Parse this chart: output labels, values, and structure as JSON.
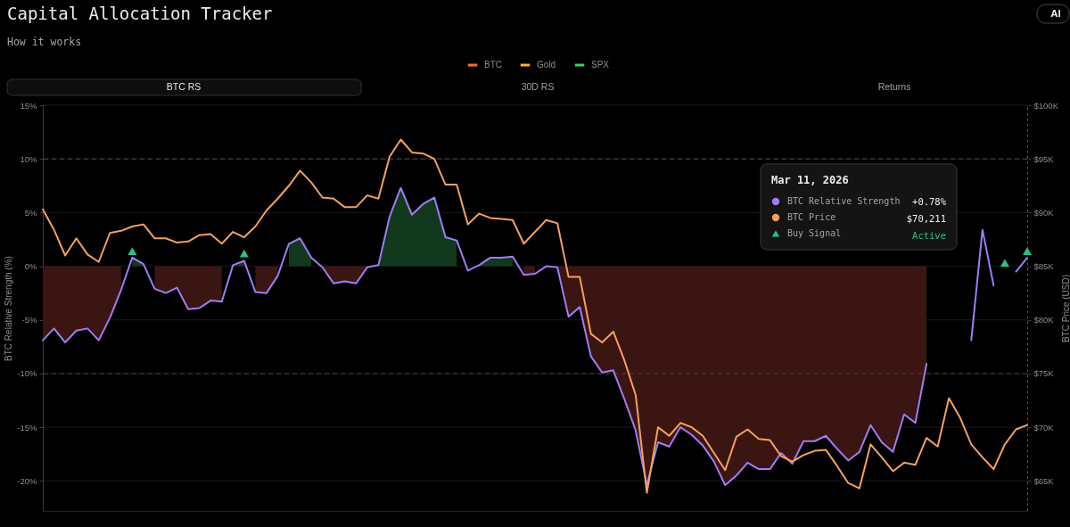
{
  "chart_data": {
    "type": "line",
    "title": "Capital Allocation Tracker",
    "annotations": [
      "How it works",
      "BTC RS",
      "30D RS",
      "Returns",
      "AI",
      "+0.78%",
      "$70,211",
      "Active"
    ],
    "ylabel": "BTC Relative Strength (%)",
    "y2label": "BTC Price (USD)",
    "legend_title": "Mar 11, 2026",
    "categories": [
      null,
      null,
      null,
      null,
      null,
      null,
      null,
      null,
      null,
      null,
      null,
      null,
      null,
      null,
      null,
      null,
      null,
      null,
      null,
      null,
      null,
      null,
      null,
      null,
      null,
      null,
      null,
      null,
      null,
      null,
      null,
      null,
      null,
      null,
      null,
      null,
      null,
      null,
      null,
      null,
      null,
      null,
      null,
      null,
      null,
      null,
      null,
      null,
      null,
      null,
      null,
      null,
      null,
      null,
      null,
      null,
      null,
      null,
      null,
      null,
      null,
      null,
      null,
      null,
      null,
      null,
      null,
      null,
      null,
      null,
      null,
      null,
      null,
      null,
      null,
      null,
      null,
      null,
      null,
      null,
      null,
      null,
      null,
      null,
      null,
      null,
      null,
      null,
      null
    ],
    "series": [
      {
        "type": "area",
        "color": "#3b1512",
        "values": [
          -6.9,
          -5.8,
          -7.1,
          -6.0,
          -5.8,
          -6.9,
          -4.8,
          -2.2,
          null,
          null,
          -2.1,
          -2.5,
          -2.0,
          -4.0,
          -3.9,
          -3.2,
          -3.3,
          null,
          null,
          -2.4,
          -2.5,
          -0.9,
          null,
          null,
          null,
          -0.1,
          -1.6,
          -1.4,
          -1.6,
          -0.1,
          null,
          null,
          null,
          null,
          null,
          null,
          null,
          null,
          null,
          null,
          null,
          null,
          null,
          -0.8,
          -0.7,
          null,
          -0.1,
          -4.7,
          -3.8,
          -8.4,
          -9.9,
          -9.7,
          -12.4,
          -15.3,
          -20.4,
          -16.4,
          -16.8,
          -15.0,
          -15.7,
          -16.7,
          -18.2,
          -20.4,
          -19.5,
          -18.3,
          -18.9,
          -18.9,
          -17.4,
          -18.4,
          -16.3,
          -16.3,
          -15.8,
          -17.0,
          -18.1,
          -17.3,
          -14.8,
          -16.4,
          -17.3,
          -13.8,
          -14.6,
          -9.1,
          null,
          null,
          null,
          null,
          null,
          null,
          null,
          null,
          null
        ]
      },
      {
        "type": "area",
        "color": "#12391e",
        "values": [
          null,
          null,
          null,
          null,
          null,
          null,
          null,
          null,
          0.8,
          0.2,
          null,
          null,
          null,
          null,
          null,
          null,
          null,
          0.1,
          0.5,
          null,
          null,
          null,
          2.1,
          2.6,
          0.8,
          null,
          null,
          null,
          null,
          null,
          0.1,
          4.6,
          7.3,
          4.8,
          5.8,
          6.4,
          2.7,
          2.4,
          null,
          0.1,
          0.8,
          0.8,
          0.9,
          null,
          null,
          null,
          null,
          null,
          null,
          null,
          null,
          null,
          null,
          null,
          null,
          null,
          null,
          null,
          null,
          null,
          null,
          null,
          null,
          null,
          null,
          null,
          null,
          null,
          null,
          null,
          null,
          null,
          null,
          null,
          null,
          null,
          null,
          null,
          null,
          null,
          null,
          null,
          null,
          null,
          null,
          null,
          null,
          null,
          null
        ]
      },
      {
        "name": "BTC Relative Strength",
        "color": "#a07cf6",
        "values": [
          -6.9,
          -5.8,
          -7.1,
          -6.0,
          -5.8,
          -6.9,
          -4.8,
          -2.2,
          0.8,
          0.2,
          -2.1,
          -2.5,
          -2.0,
          -4.0,
          -3.9,
          -3.2,
          -3.3,
          0.1,
          0.5,
          -2.4,
          -2.5,
          -0.9,
          2.1,
          2.6,
          0.8,
          -0.1,
          -1.6,
          -1.4,
          -1.6,
          -0.1,
          0.1,
          4.6,
          7.3,
          4.8,
          5.8,
          6.4,
          2.7,
          2.4,
          -0.4,
          0.1,
          0.8,
          0.8,
          0.9,
          -0.8,
          -0.7,
          0.0,
          -0.1,
          -4.7,
          -3.8,
          -8.4,
          -9.9,
          -9.7,
          -12.4,
          -15.3,
          -20.4,
          -16.4,
          -16.8,
          -15.0,
          -15.7,
          -16.7,
          -18.2,
          -20.4,
          -19.5,
          -18.3,
          -18.9,
          -18.9,
          -17.4,
          -18.4,
          -16.3,
          -16.3,
          -15.8,
          -17.0,
          -18.1,
          -17.3,
          -14.8,
          -16.4,
          -17.3,
          -13.8,
          -14.6,
          -9.1,
          null,
          null,
          null,
          -6.9,
          3.4,
          -1.8,
          null,
          -0.5,
          0.78
        ]
      },
      {
        "name": "BTC Price",
        "axis": "y2",
        "color": "#f5a15d",
        "values": [
          90300,
          88400,
          86000,
          87600,
          86100,
          85400,
          88100,
          88300,
          88700,
          88900,
          87600,
          87600,
          87200,
          87300,
          87900,
          88000,
          87100,
          88200,
          87700,
          88700,
          90200,
          91300,
          92500,
          93900,
          92800,
          91400,
          91300,
          90500,
          90500,
          91600,
          91300,
          95200,
          96800,
          95600,
          95500,
          95000,
          92600,
          92600,
          88900,
          89900,
          89500,
          89400,
          89300,
          87100,
          88200,
          89300,
          89000,
          84000,
          84000,
          78700,
          77900,
          78900,
          76200,
          73000,
          63900,
          70000,
          69200,
          70400,
          70000,
          69200,
          67600,
          66000,
          69100,
          69800,
          68900,
          68800,
          67300,
          66800,
          67400,
          67800,
          67900,
          66400,
          64800,
          64300,
          68400,
          67200,
          65900,
          66700,
          66500,
          69000,
          68200,
          72700,
          70900,
          68400,
          67200,
          66100,
          68400,
          69800,
          70211
        ]
      },
      {
        "name": "Buy Signal",
        "type": "scatter",
        "marker": "triangle",
        "color": "#2dbf8b",
        "values": [
          null,
          null,
          null,
          null,
          null,
          null,
          null,
          null,
          1.4,
          null,
          null,
          null,
          null,
          null,
          null,
          null,
          null,
          null,
          1.2,
          null,
          null,
          null,
          null,
          null,
          null,
          null,
          null,
          null,
          null,
          null,
          null,
          null,
          null,
          null,
          null,
          null,
          null,
          null,
          null,
          null,
          null,
          null,
          null,
          null,
          null,
          null,
          null,
          null,
          null,
          null,
          null,
          null,
          null,
          null,
          null,
          null,
          null,
          null,
          null,
          null,
          null,
          null,
          null,
          null,
          null,
          null,
          null,
          null,
          null,
          null,
          null,
          null,
          null,
          null,
          null,
          null,
          null,
          null,
          null,
          null,
          null,
          null,
          null,
          null,
          null,
          null,
          0.3,
          null,
          1.4
        ]
      },
      {
        "name": "BTC",
        "color": "#f2743e",
        "values": [
          null,
          null,
          null,
          null,
          null,
          null,
          null,
          null,
          null,
          null,
          null,
          null,
          null,
          null,
          null,
          null,
          null,
          null,
          null,
          null,
          null,
          null,
          null,
          null,
          null,
          null,
          null,
          null,
          null,
          null,
          null,
          null,
          null,
          null,
          null,
          null,
          null,
          null,
          null,
          null,
          null,
          null,
          null,
          null,
          null,
          null,
          null,
          null,
          null,
          null,
          null,
          null,
          null,
          null,
          null,
          null,
          null,
          null,
          null,
          null,
          null,
          null,
          null,
          null,
          null,
          null,
          null,
          null,
          null,
          null,
          null,
          null,
          null,
          null,
          null,
          null,
          null,
          null,
          null,
          null,
          null,
          null,
          null,
          null,
          null,
          null,
          null,
          null,
          null
        ]
      },
      {
        "name": "Gold",
        "color": "#f3b33d",
        "values": [
          null,
          null,
          null,
          null,
          null,
          null,
          null,
          null,
          null,
          null,
          null,
          null,
          null,
          null,
          null,
          null,
          null,
          null,
          null,
          null,
          null,
          null,
          null,
          null,
          null,
          null,
          null,
          null,
          null,
          null,
          null,
          null,
          null,
          null,
          null,
          null,
          null,
          null,
          null,
          null,
          null,
          null,
          null,
          null,
          null,
          null,
          null,
          null,
          null,
          null,
          null,
          null,
          null,
          null,
          null,
          null,
          null,
          null,
          null,
          null,
          null,
          null,
          null,
          null,
          null,
          null,
          null,
          null,
          null,
          null,
          null,
          null,
          null,
          null,
          null,
          null,
          null,
          null,
          null,
          null,
          null,
          null,
          null,
          null,
          null,
          null,
          null,
          null,
          null
        ]
      },
      {
        "name": "SPX",
        "color": "#3ccf6b",
        "values": [
          null,
          null,
          null,
          null,
          null,
          null,
          null,
          null,
          null,
          null,
          null,
          null,
          null,
          null,
          null,
          null,
          null,
          null,
          null,
          null,
          null,
          null,
          null,
          null,
          null,
          null,
          null,
          null,
          null,
          null,
          null,
          null,
          null,
          null,
          null,
          null,
          null,
          null,
          null,
          null,
          null,
          null,
          null,
          null,
          null,
          null,
          null,
          null,
          null,
          null,
          null,
          null,
          null,
          null,
          null,
          null,
          null,
          null,
          null,
          null,
          null,
          null,
          null,
          null,
          null,
          null,
          null,
          null,
          null,
          null,
          null,
          null,
          null,
          null,
          null,
          null,
          null,
          null,
          null,
          null,
          null,
          null,
          null,
          null,
          null,
          null,
          null,
          null,
          null
        ]
      }
    ],
    "ylim": [
      -22.8,
      15
    ],
    "yticks": [
      {
        "value": 15,
        "label": "15%"
      },
      {
        "value": 10,
        "label": "10%"
      },
      {
        "value": 5,
        "label": "5%"
      },
      {
        "value": 0,
        "label": "0%"
      },
      {
        "value": -5,
        "label": "-5%"
      },
      {
        "value": -10,
        "label": "-10%"
      },
      {
        "value": -15,
        "label": "-15%"
      },
      {
        "value": -20,
        "label": "-20%"
      }
    ],
    "y2lim": [
      62200,
      100000
    ],
    "y2ticks": [
      {
        "value": 100000,
        "label": "$100K"
      },
      {
        "value": 95000,
        "label": "$95K"
      },
      {
        "value": 90000,
        "label": "$90K"
      },
      {
        "value": 85000,
        "label": "$85K"
      },
      {
        "value": 80000,
        "label": "$80K"
      },
      {
        "value": 75000,
        "label": "$75K"
      },
      {
        "value": 70000,
        "label": "$70K"
      },
      {
        "value": 65000,
        "label": "$65K"
      }
    ],
    "ref_lines": [
      {
        "axis": "y",
        "value": 10,
        "color": "#4e4e4e",
        "line_style": "dashed"
      },
      {
        "axis": "y",
        "value": -10,
        "color": "#5b3b35",
        "line_style": "dashed"
      }
    ],
    "grid": "y",
    "legend": "top"
  }
}
